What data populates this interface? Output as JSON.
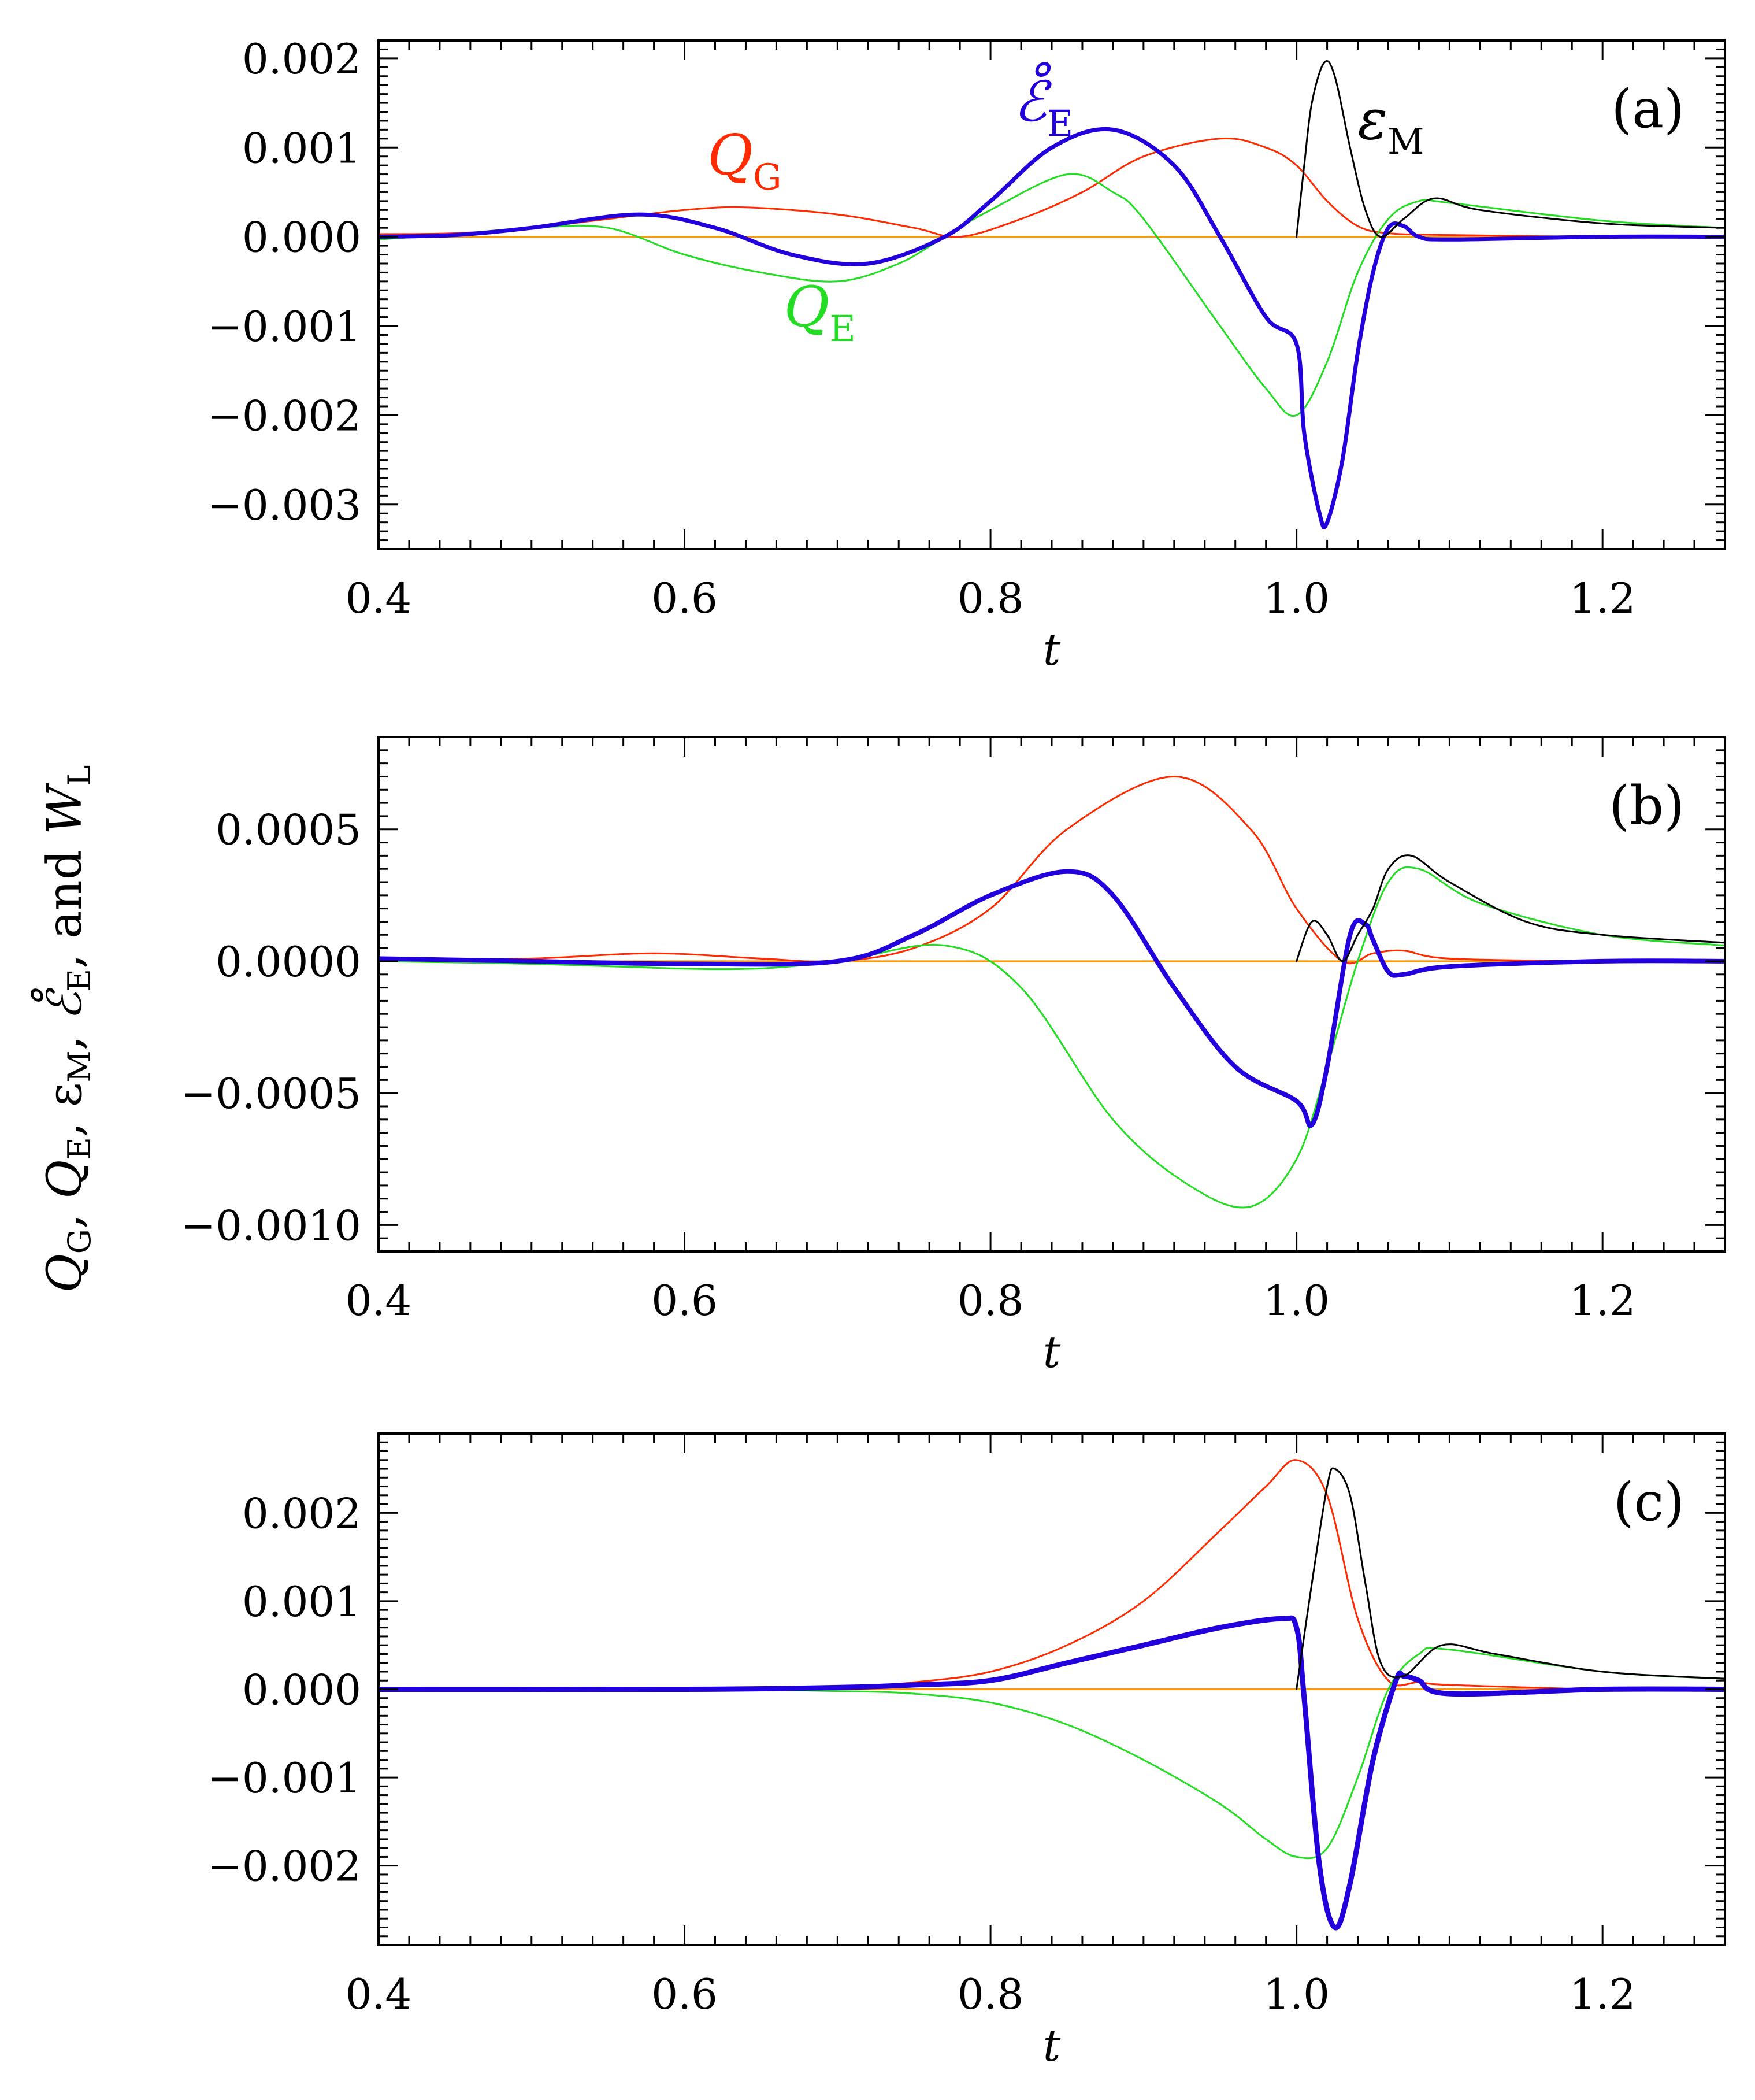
{
  "chart_data": {
    "type": "line",
    "ylabel": {
      "parts": [
        "Q",
        "G",
        ", ",
        "Q",
        "E",
        ", ",
        "ε",
        "M",
        ", ",
        "ℰ̊",
        "E",
        ", and ",
        "W",
        "L"
      ]
    },
    "series_colors": {
      "Q_G": "#ff2a00",
      "Q_E": "#22dd22",
      "eps_M": "#000000",
      "E_dot": "#2200dd",
      "W_L": "#ff9900"
    },
    "panels": [
      {
        "label": "(a)",
        "xlabel": "t",
        "xlim": [
          0.4,
          1.28
        ],
        "ylim": [
          -0.0035,
          0.0022
        ],
        "xticks": [
          0.4,
          0.6,
          0.8,
          1.0,
          1.2
        ],
        "xtick_labels": [
          "0.4",
          "0.6",
          "0.8",
          "1.0",
          "1.2"
        ],
        "yticks": [
          0.002,
          0.001,
          0.0,
          -0.001,
          -0.002,
          -0.003
        ],
        "ytick_labels": [
          "0.002",
          "0.001",
          "0.000",
          "−0.001",
          "−0.002",
          "−0.003"
        ],
        "annotations": [
          {
            "main": "Q",
            "sub": "G",
            "series": "Q_G",
            "t": 0.615,
            "y": 0.0007
          },
          {
            "main": "ℰ̊",
            "sub": "E",
            "series": "E_dot",
            "t": 0.815,
            "y": 0.0013
          },
          {
            "main": "Q",
            "sub": "E",
            "series": "Q_E",
            "t": 0.665,
            "y": -0.001
          },
          {
            "main": "ε",
            "sub": "M",
            "series": "eps_M",
            "t": 1.04,
            "y": 0.0011
          }
        ],
        "series": [
          {
            "name": "W_L",
            "lw": 3,
            "t": [
              0.4,
              1.28
            ],
            "y": [
              0,
              0
            ]
          },
          {
            "name": "Q_G",
            "lw": 3,
            "t": [
              0.4,
              0.45,
              0.5,
              0.55,
              0.6,
              0.64,
              0.7,
              0.75,
              0.78,
              0.82,
              0.86,
              0.9,
              0.95,
              0.98,
              1.0,
              1.02,
              1.04,
              1.06,
              1.1,
              1.2,
              1.28
            ],
            "y": [
              3e-05,
              4e-05,
              0.0001,
              0.0002,
              0.0003,
              0.00033,
              0.00025,
              0.0001,
              0.0,
              0.0002,
              0.0005,
              0.0009,
              0.0011,
              0.001,
              0.0008,
              0.0004,
              0.00012,
              4e-05,
              2e-05,
              0.0,
              0.0
            ]
          },
          {
            "name": "Q_E",
            "lw": 3,
            "t": [
              0.4,
              0.45,
              0.5,
              0.55,
              0.6,
              0.65,
              0.7,
              0.74,
              0.77,
              0.8,
              0.85,
              0.88,
              0.9,
              0.95,
              0.98,
              1.0,
              1.02,
              1.04,
              1.06,
              1.08,
              1.1,
              1.2,
              1.28
            ],
            "y": [
              -3e-05,
              3e-05,
              0.0001,
              0.0001,
              -0.0002,
              -0.0004,
              -0.0005,
              -0.0003,
              0.0,
              0.0003,
              0.0007,
              0.0005,
              0.0002,
              -0.001,
              -0.0017,
              -0.002,
              -0.0014,
              -0.0004,
              0.0002,
              0.0004,
              0.00038,
              0.00018,
              0.0001
            ]
          },
          {
            "name": "E_dot",
            "lw": 7,
            "t": [
              0.4,
              0.45,
              0.5,
              0.57,
              0.62,
              0.67,
              0.72,
              0.77,
              0.8,
              0.84,
              0.88,
              0.92,
              0.95,
              0.98,
              1.0,
              1.005,
              1.015,
              1.02,
              1.03,
              1.04,
              1.05,
              1.06,
              1.07,
              1.08,
              1.1,
              1.2,
              1.28
            ],
            "y": [
              0.0,
              2e-05,
              0.0001,
              0.00025,
              0.0001,
              -0.0002,
              -0.0003,
              0.0,
              0.0004,
              0.001,
              0.0012,
              0.0008,
              0.0,
              -0.0009,
              -0.0012,
              -0.0022,
              -0.0031,
              -0.0032,
              -0.0025,
              -0.0013,
              -0.0004,
              0.0001,
              0.00012,
              0.0,
              -3e-05,
              0.0,
              0.0
            ]
          },
          {
            "name": "eps_M",
            "lw": 3,
            "t": [
              1.0,
              1.005,
              1.01,
              1.018,
              1.025,
              1.035,
              1.045,
              1.055,
              1.07,
              1.09,
              1.12,
              1.2,
              1.28
            ],
            "y": [
              0.0,
              0.0008,
              0.0015,
              0.00195,
              0.0018,
              0.001,
              0.0003,
              0.0,
              0.0002,
              0.00043,
              0.0003,
              0.00015,
              0.0001
            ]
          }
        ]
      },
      {
        "label": "(b)",
        "xlabel": "t",
        "xlim": [
          0.4,
          1.28
        ],
        "ylim": [
          -0.0011,
          0.00085
        ],
        "xticks": [
          0.4,
          0.6,
          0.8,
          1.0,
          1.2
        ],
        "xtick_labels": [
          "0.4",
          "0.6",
          "0.8",
          "1.0",
          "1.2"
        ],
        "yticks": [
          0.0005,
          0.0,
          -0.0005,
          -0.001
        ],
        "ytick_labels": [
          "0.0005",
          "0.0000",
          "−0.0005",
          "−0.0010"
        ],
        "annotations": [],
        "series": [
          {
            "name": "W_L",
            "lw": 3,
            "t": [
              0.4,
              1.28
            ],
            "y": [
              0,
              0
            ]
          },
          {
            "name": "Q_G",
            "lw": 3,
            "t": [
              0.4,
              0.5,
              0.58,
              0.65,
              0.7,
              0.75,
              0.8,
              0.85,
              0.92,
              0.97,
              1.0,
              1.03,
              1.05,
              1.07,
              1.1,
              1.2,
              1.28
            ],
            "y": [
              0.0,
              1e-05,
              3e-05,
              1e-05,
              0.0,
              5e-05,
              0.0002,
              0.0005,
              0.0007,
              0.0005,
              0.0002,
              0.0,
              3e-05,
              4e-05,
              1e-05,
              0.0,
              0.0
            ]
          },
          {
            "name": "Q_E",
            "lw": 3,
            "t": [
              0.4,
              0.5,
              0.63,
              0.7,
              0.77,
              0.82,
              0.88,
              0.93,
              0.97,
              1.0,
              1.02,
              1.04,
              1.06,
              1.08,
              1.12,
              1.2,
              1.28
            ],
            "y": [
              0.0,
              -1e-05,
              -3e-05,
              0.0,
              6e-05,
              -0.0001,
              -0.0006,
              -0.00085,
              -0.00093,
              -0.00075,
              -0.0004,
              0.0,
              0.0003,
              0.00035,
              0.00022,
              0.0001,
              6e-05
            ]
          },
          {
            "name": "E_dot",
            "lw": 8,
            "t": [
              0.4,
              0.5,
              0.6,
              0.7,
              0.75,
              0.8,
              0.85,
              0.88,
              0.92,
              0.96,
              1.0,
              1.01,
              1.02,
              1.035,
              1.045,
              1.05,
              1.06,
              1.07,
              1.1,
              1.2,
              1.28
            ],
            "y": [
              1e-05,
              0.0,
              -1e-05,
              0.0,
              0.0001,
              0.00025,
              0.00034,
              0.00025,
              -0.0001,
              -0.0004,
              -0.00053,
              -0.00062,
              -0.0004,
              0.0001,
              0.00014,
              8e-05,
              -4e-05,
              -5e-05,
              -2e-05,
              0.0,
              0.0
            ]
          },
          {
            "name": "eps_M",
            "lw": 3,
            "t": [
              1.0,
              1.01,
              1.02,
              1.03,
              1.04,
              1.05,
              1.06,
              1.075,
              1.1,
              1.15,
              1.2,
              1.28
            ],
            "y": [
              0.0,
              0.00015,
              0.0001,
              0.0,
              0.0001,
              0.0002,
              0.00035,
              0.0004,
              0.0003,
              0.00015,
              0.0001,
              7e-05
            ]
          }
        ]
      },
      {
        "label": "(c)",
        "xlabel": "t",
        "xlim": [
          0.4,
          1.28
        ],
        "ylim": [
          -0.0029,
          0.0029
        ],
        "xticks": [
          0.4,
          0.6,
          0.8,
          1.0,
          1.2
        ],
        "xtick_labels": [
          "0.4",
          "0.6",
          "0.8",
          "1.0",
          "1.2"
        ],
        "yticks": [
          0.002,
          0.001,
          0.0,
          -0.001,
          -0.002
        ],
        "ytick_labels": [
          "0.002",
          "0.001",
          "0.000",
          "−0.001",
          "−0.002"
        ],
        "annotations": [],
        "series": [
          {
            "name": "W_L",
            "lw": 3,
            "t": [
              0.4,
              1.28
            ],
            "y": [
              0,
              0
            ]
          },
          {
            "name": "Q_G",
            "lw": 3,
            "t": [
              0.4,
              0.6,
              0.7,
              0.75,
              0.8,
              0.85,
              0.9,
              0.95,
              0.98,
              1.0,
              1.02,
              1.04,
              1.06,
              1.08,
              1.1,
              1.2,
              1.28
            ],
            "y": [
              0.0,
              0.0,
              2e-05,
              8e-05,
              0.0002,
              0.0005,
              0.001,
              0.0018,
              0.0023,
              0.0026,
              0.0022,
              0.0008,
              0.0001,
              8e-05,
              5e-05,
              0.0,
              0.0
            ]
          },
          {
            "name": "Q_E",
            "lw": 3,
            "t": [
              0.4,
              0.6,
              0.7,
              0.75,
              0.8,
              0.85,
              0.9,
              0.95,
              0.98,
              1.0,
              1.02,
              1.04,
              1.06,
              1.08,
              1.1,
              1.2,
              1.28
            ],
            "y": [
              0.0,
              0.0,
              -2e-05,
              -5e-05,
              -0.00015,
              -0.0004,
              -0.0008,
              -0.0013,
              -0.0017,
              -0.0019,
              -0.0018,
              -0.001,
              0.0,
              0.0004,
              0.00045,
              0.0002,
              0.00012
            ]
          },
          {
            "name": "E_dot",
            "lw": 9,
            "t": [
              0.4,
              0.6,
              0.7,
              0.75,
              0.8,
              0.85,
              0.9,
              0.95,
              0.99,
              1.0,
              1.005,
              1.015,
              1.025,
              1.035,
              1.05,
              1.065,
              1.07,
              1.08,
              1.1,
              1.2,
              1.28
            ],
            "y": [
              0.0,
              0.0,
              2e-05,
              5e-05,
              0.0001,
              0.0003,
              0.0005,
              0.0007,
              0.0008,
              0.0007,
              -0.0001,
              -0.002,
              -0.0027,
              -0.0022,
              -0.0008,
              0.0001,
              0.00015,
              0.0001,
              -5e-05,
              0.0,
              0.0
            ]
          },
          {
            "name": "eps_M",
            "lw": 3,
            "t": [
              1.0,
              1.01,
              1.02,
              1.025,
              1.035,
              1.045,
              1.055,
              1.07,
              1.095,
              1.13,
              1.2,
              1.28
            ],
            "y": [
              0.0,
              0.0012,
              0.0023,
              0.0025,
              0.0022,
              0.0012,
              0.0003,
              0.00015,
              0.0005,
              0.0004,
              0.0002,
              0.00012
            ]
          }
        ]
      }
    ]
  }
}
